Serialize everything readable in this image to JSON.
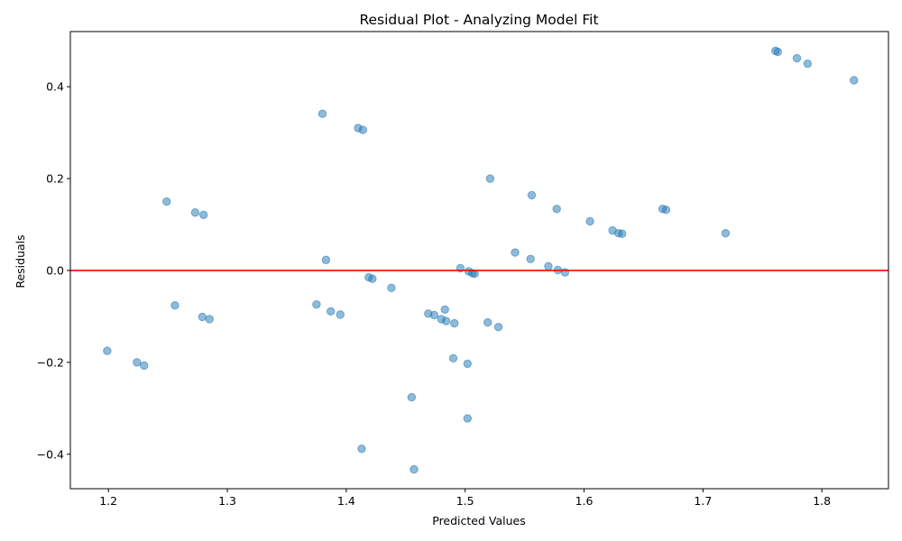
{
  "chart_data": {
    "type": "scatter",
    "title": "Residual Plot - Analyzing Model Fit",
    "xlabel": "Predicted Values",
    "ylabel": "Residuals",
    "xlim": [
      1.168,
      1.856
    ],
    "ylim": [
      -0.475,
      0.52
    ],
    "xticks": [
      1.2,
      1.3,
      1.4,
      1.5,
      1.6,
      1.7,
      1.8
    ],
    "xtick_labels": [
      "1.2",
      "1.3",
      "1.4",
      "1.5",
      "1.6",
      "1.7",
      "1.8"
    ],
    "yticks": [
      -0.4,
      -0.2,
      0.0,
      0.2,
      0.4
    ],
    "ytick_labels": [
      "−0.4",
      "−0.2",
      "0.0",
      "0.2",
      "0.4"
    ],
    "grid": false,
    "reference_line": {
      "y": 0,
      "color": "#ff0000"
    },
    "point_color": "#1f77b4",
    "points": [
      {
        "x": 1.761,
        "y": 0.478
      },
      {
        "x": 1.763,
        "y": 0.476
      },
      {
        "x": 1.779,
        "y": 0.462
      },
      {
        "x": 1.788,
        "y": 0.45
      },
      {
        "x": 1.827,
        "y": 0.414
      },
      {
        "x": 1.38,
        "y": 0.341
      },
      {
        "x": 1.41,
        "y": 0.31
      },
      {
        "x": 1.414,
        "y": 0.306
      },
      {
        "x": 1.521,
        "y": 0.2
      },
      {
        "x": 1.556,
        "y": 0.164
      },
      {
        "x": 1.249,
        "y": 0.15
      },
      {
        "x": 1.577,
        "y": 0.134
      },
      {
        "x": 1.666,
        "y": 0.134
      },
      {
        "x": 1.669,
        "y": 0.132
      },
      {
        "x": 1.273,
        "y": 0.126
      },
      {
        "x": 1.28,
        "y": 0.121
      },
      {
        "x": 1.605,
        "y": 0.107
      },
      {
        "x": 1.624,
        "y": 0.087
      },
      {
        "x": 1.629,
        "y": 0.081
      },
      {
        "x": 1.632,
        "y": 0.08
      },
      {
        "x": 1.719,
        "y": 0.081
      },
      {
        "x": 1.542,
        "y": 0.039
      },
      {
        "x": 1.555,
        "y": 0.025
      },
      {
        "x": 1.383,
        "y": 0.023
      },
      {
        "x": 1.57,
        "y": 0.009
      },
      {
        "x": 1.496,
        "y": 0.005
      },
      {
        "x": 1.578,
        "y": 0.001
      },
      {
        "x": 1.503,
        "y": -0.002
      },
      {
        "x": 1.584,
        "y": -0.004
      },
      {
        "x": 1.506,
        "y": -0.006
      },
      {
        "x": 1.508,
        "y": -0.007
      },
      {
        "x": 1.419,
        "y": -0.015
      },
      {
        "x": 1.422,
        "y": -0.018
      },
      {
        "x": 1.438,
        "y": -0.038
      },
      {
        "x": 1.375,
        "y": -0.074
      },
      {
        "x": 1.256,
        "y": -0.076
      },
      {
        "x": 1.483,
        "y": -0.085
      },
      {
        "x": 1.387,
        "y": -0.089
      },
      {
        "x": 1.469,
        "y": -0.094
      },
      {
        "x": 1.474,
        "y": -0.097
      },
      {
        "x": 1.395,
        "y": -0.096
      },
      {
        "x": 1.279,
        "y": -0.101
      },
      {
        "x": 1.285,
        "y": -0.106
      },
      {
        "x": 1.48,
        "y": -0.106
      },
      {
        "x": 1.484,
        "y": -0.11
      },
      {
        "x": 1.491,
        "y": -0.115
      },
      {
        "x": 1.519,
        "y": -0.113
      },
      {
        "x": 1.528,
        "y": -0.123
      },
      {
        "x": 1.199,
        "y": -0.175
      },
      {
        "x": 1.49,
        "y": -0.191
      },
      {
        "x": 1.224,
        "y": -0.2
      },
      {
        "x": 1.23,
        "y": -0.207
      },
      {
        "x": 1.502,
        "y": -0.203
      },
      {
        "x": 1.455,
        "y": -0.276
      },
      {
        "x": 1.502,
        "y": -0.322
      },
      {
        "x": 1.413,
        "y": -0.388
      },
      {
        "x": 1.457,
        "y": -0.433
      }
    ]
  }
}
